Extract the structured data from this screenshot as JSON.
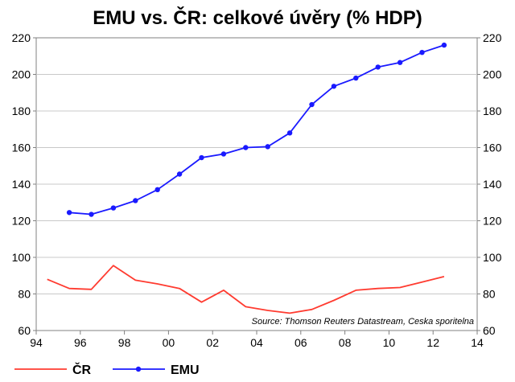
{
  "chart_data": {
    "type": "line",
    "title": "EMU vs. ČR: celkové úvěry (% HDP)",
    "source": "Source: Thomson Reuters Datastream, Ceska sporitelna",
    "xlim": [
      1994,
      2014
    ],
    "ylim": [
      60,
      220
    ],
    "x_ticks": [
      1994,
      1996,
      1998,
      2000,
      2002,
      2004,
      2006,
      2008,
      2010,
      2012,
      2014
    ],
    "x_tick_labels": [
      "94",
      "96",
      "98",
      "00",
      "02",
      "04",
      "06",
      "08",
      "10",
      "12",
      "14"
    ],
    "y_ticks": [
      60,
      80,
      100,
      120,
      140,
      160,
      180,
      200,
      220
    ],
    "y_tick_labels": [
      "60",
      "80",
      "100",
      "120",
      "140",
      "160",
      "180",
      "200",
      "220"
    ],
    "grid": true,
    "legend_position": "bottom-left",
    "series": [
      {
        "name": "ČR",
        "color": "#ff3b30",
        "markers": false,
        "x": [
          1994.5,
          1995.5,
          1996.5,
          1997.5,
          1998.5,
          1999.5,
          2000.5,
          2001.5,
          2002.5,
          2003.5,
          2004.5,
          2005.5,
          2006.5,
          2007.5,
          2008.5,
          2009.5,
          2010.5,
          2011.5,
          2012.5
        ],
        "y": [
          88,
          83,
          82.5,
          95.5,
          87.5,
          85.5,
          83,
          75.5,
          82,
          73,
          71,
          69.5,
          71.5,
          76.5,
          82,
          83,
          83.5,
          86.5,
          89.5
        ]
      },
      {
        "name": "EMU",
        "color": "#1a1aff",
        "markers": true,
        "x": [
          1995.5,
          1996.5,
          1997.5,
          1998.5,
          1999.5,
          2000.5,
          2001.5,
          2002.5,
          2003.5,
          2004.5,
          2005.5,
          2006.5,
          2007.5,
          2008.5,
          2009.5,
          2010.5,
          2011.5,
          2012.5
        ],
        "y": [
          124.5,
          123.5,
          127,
          131,
          137,
          145.5,
          154.5,
          156.5,
          160,
          160.5,
          168,
          183.5,
          193.5,
          198,
          204,
          206.5,
          212,
          216
        ]
      }
    ]
  }
}
